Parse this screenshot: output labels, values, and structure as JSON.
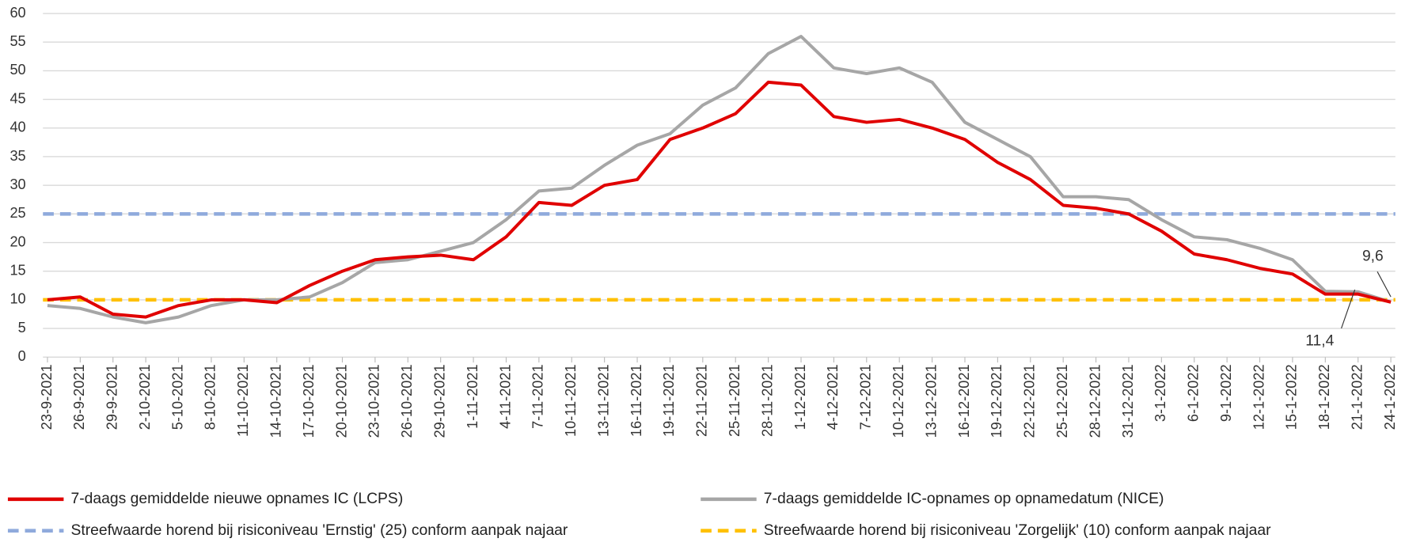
{
  "chart_data": {
    "type": "line",
    "categories": [
      "23-9-2021",
      "26-9-2021",
      "29-9-2021",
      "2-10-2021",
      "5-10-2021",
      "8-10-2021",
      "11-10-2021",
      "14-10-2021",
      "17-10-2021",
      "20-10-2021",
      "23-10-2021",
      "26-10-2021",
      "29-10-2021",
      "1-11-2021",
      "4-11-2021",
      "7-11-2021",
      "10-11-2021",
      "13-11-2021",
      "16-11-2021",
      "19-11-2021",
      "22-11-2021",
      "25-11-2021",
      "28-11-2021",
      "1-12-2021",
      "4-12-2021",
      "7-12-2021",
      "10-12-2021",
      "13-12-2021",
      "16-12-2021",
      "19-12-2021",
      "22-12-2021",
      "25-12-2021",
      "28-12-2021",
      "31-12-2021",
      "3-1-2022",
      "6-1-2022",
      "9-1-2022",
      "12-1-2022",
      "15-1-2022",
      "18-1-2022",
      "21-1-2022",
      "24-1-2022"
    ],
    "series": [
      {
        "name": "7-daags gemiddelde nieuwe opnames IC (LCPS)",
        "color": "#e00000",
        "values": [
          10,
          10.5,
          7.5,
          7,
          9,
          10,
          10,
          9.5,
          12.5,
          15,
          17,
          17.5,
          17.8,
          17,
          21,
          27,
          26.5,
          30,
          31,
          38,
          40,
          42.5,
          48,
          47.5,
          42,
          41,
          41.5,
          40,
          38,
          34,
          31,
          26.5,
          26,
          25,
          22,
          18,
          17,
          15.5,
          14.5,
          11,
          11,
          9.6
        ]
      },
      {
        "name": "7-daags gemiddelde IC-opnames op opnamedatum (NICE)",
        "color": "#a6a6a6",
        "values": [
          9,
          8.5,
          7,
          6,
          7,
          9,
          10,
          10,
          10.5,
          13,
          16.5,
          17,
          18.5,
          20,
          24,
          29,
          29.5,
          33.5,
          37,
          39,
          44,
          47,
          53,
          56,
          50.5,
          49.5,
          50.5,
          48,
          41,
          38,
          35,
          28,
          28,
          27.5,
          24,
          21,
          20.5,
          19,
          17,
          11.5,
          11.4,
          9.6
        ]
      }
    ],
    "reference_lines": [
      {
        "name": "Streefwaarde horend bij risiconiveau 'Ernstig' (25) conform aanpak najaar",
        "value": 25,
        "color": "#8faadc"
      },
      {
        "name": "Streefwaarde horend bij risiconiveau 'Zorgelijk' (10) conform aanpak najaar",
        "value": 10,
        "color": "#ffc000"
      }
    ],
    "annotations": [
      "9,6",
      "11,4"
    ],
    "ylim": [
      0,
      60
    ],
    "yticks": [
      0,
      5,
      10,
      15,
      20,
      25,
      30,
      35,
      40,
      45,
      50,
      55,
      60
    ],
    "grid": true
  }
}
